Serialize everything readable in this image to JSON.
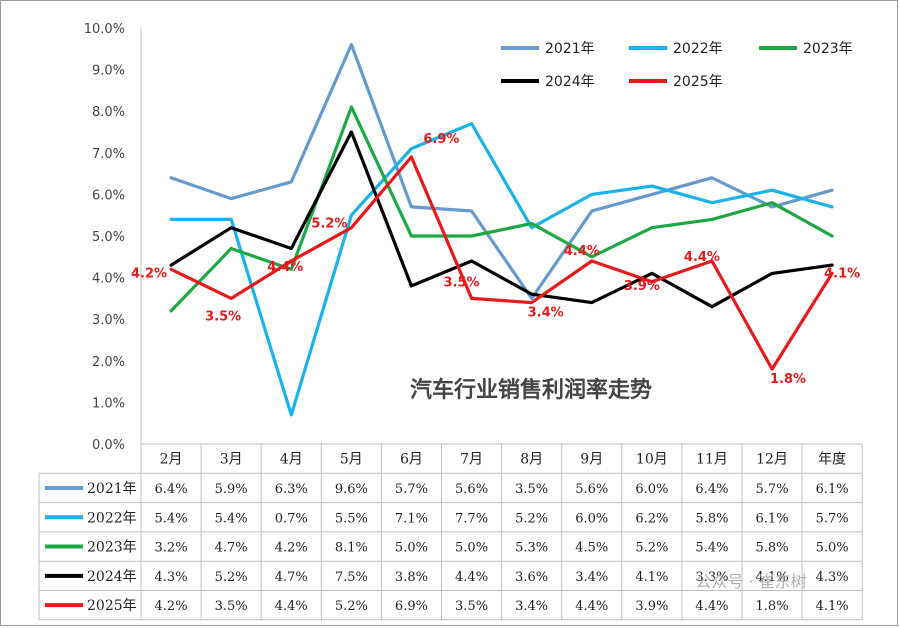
{
  "chart_data": {
    "type": "line",
    "title": "汽车行业销售利润率走势",
    "categories": [
      "2月",
      "3月",
      "4月",
      "5月",
      "6月",
      "7月",
      "8月",
      "9月",
      "10月",
      "11月",
      "12月",
      "年度"
    ],
    "ylim": [
      0,
      10
    ],
    "y_ticks": [
      "0.0%",
      "1.0%",
      "2.0%",
      "3.0%",
      "4.0%",
      "5.0%",
      "6.0%",
      "7.0%",
      "8.0%",
      "9.0%",
      "10.0%"
    ],
    "grid": false,
    "legend_position": "top-right",
    "series": [
      {
        "name": "2021年",
        "color": "#6699cc",
        "values": [
          6.4,
          5.9,
          6.3,
          9.6,
          5.7,
          5.6,
          3.5,
          5.6,
          6.0,
          6.4,
          5.7,
          6.1
        ],
        "table": [
          "6.4%",
          "5.9%",
          "6.3%",
          "9.6%",
          "5.7%",
          "5.6%",
          "3.5%",
          "5.6%",
          "6.0%",
          "6.4%",
          "5.7%",
          "6.1%"
        ]
      },
      {
        "name": "2022年",
        "color": "#1ab2e8",
        "values": [
          5.4,
          5.4,
          0.7,
          5.5,
          7.1,
          7.7,
          5.2,
          6.0,
          6.2,
          5.8,
          6.1,
          5.7
        ],
        "table": [
          "5.4%",
          "5.4%",
          "0.7%",
          "5.5%",
          "7.1%",
          "7.7%",
          "5.2%",
          "6.0%",
          "6.2%",
          "5.8%",
          "6.1%",
          "5.7%"
        ]
      },
      {
        "name": "2023年",
        "color": "#1ea843",
        "values": [
          3.2,
          4.7,
          4.2,
          8.1,
          5.0,
          5.0,
          5.3,
          4.5,
          5.2,
          5.4,
          5.8,
          5.0
        ],
        "table": [
          "3.2%",
          "4.7%",
          "4.2%",
          "8.1%",
          "5.0%",
          "5.0%",
          "5.3%",
          "4.5%",
          "5.2%",
          "5.4%",
          "5.8%",
          "5.0%"
        ]
      },
      {
        "name": "2024年",
        "color": "#000000",
        "values": [
          4.3,
          5.2,
          4.7,
          7.5,
          3.8,
          4.4,
          3.6,
          3.4,
          4.1,
          3.3,
          4.1,
          4.3
        ],
        "table": [
          "4.3%",
          "5.2%",
          "4.7%",
          "7.5%",
          "3.8%",
          "4.4%",
          "3.6%",
          "3.4%",
          "4.1%",
          "3.3%",
          "4.1%",
          "4.3%"
        ]
      },
      {
        "name": "2025年",
        "color": "#e41a1c",
        "values": [
          4.2,
          3.5,
          4.4,
          5.2,
          6.9,
          3.5,
          3.4,
          4.4,
          3.9,
          4.4,
          1.8,
          4.1
        ],
        "table": [
          "4.2%",
          "3.5%",
          "4.4%",
          "5.2%",
          "6.9%",
          "3.5%",
          "3.4%",
          "4.4%",
          "3.9%",
          "4.4%",
          "1.8%",
          "4.1%"
        ],
        "data_labels": [
          "4.2%",
          "3.5%",
          "4.4%",
          "5.2%",
          "6.9%",
          "3.5%",
          "3.4%",
          "4.4%",
          "3.9%",
          "4.4%",
          "1.8%",
          "4.1%"
        ]
      }
    ]
  },
  "watermark": "公众号 · 崔东树"
}
